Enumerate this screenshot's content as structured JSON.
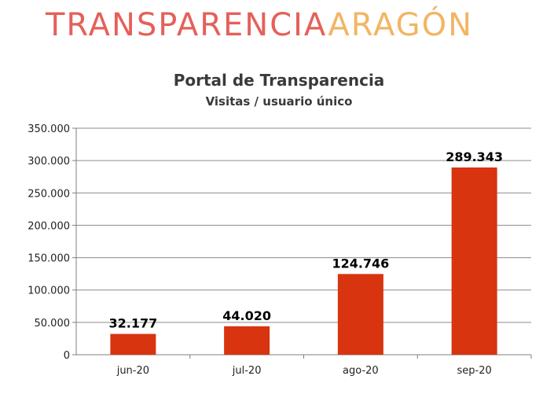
{
  "logo": {
    "part1": "TRANSPARENCIA",
    "part2": "ARAGÓN"
  },
  "colors": {
    "bar": "#D83410",
    "grid": "#8c8c8c",
    "axis": "#7f7f7f",
    "logo_red": "#E5605A",
    "logo_orange": "#F2B564"
  },
  "chart_data": {
    "type": "bar",
    "title": "Portal de Transparencia",
    "subtitle": "Visitas / usuario único",
    "xlabel": "",
    "ylabel": "",
    "categories": [
      "jun-20",
      "jul-20",
      "ago-20",
      "sep-20"
    ],
    "values": [
      32177,
      44020,
      124746,
      289343
    ],
    "value_labels": [
      "32.177",
      "44.020",
      "124.746",
      "289.343"
    ],
    "ylim": [
      0,
      350000
    ],
    "yticks": [
      0,
      50000,
      100000,
      150000,
      200000,
      250000,
      300000,
      350000
    ],
    "ytick_labels": [
      "0",
      "50.000",
      "100.000",
      "150.000",
      "200.000",
      "250.000",
      "300.000",
      "350.000"
    ],
    "grid": true,
    "legend": "none"
  }
}
